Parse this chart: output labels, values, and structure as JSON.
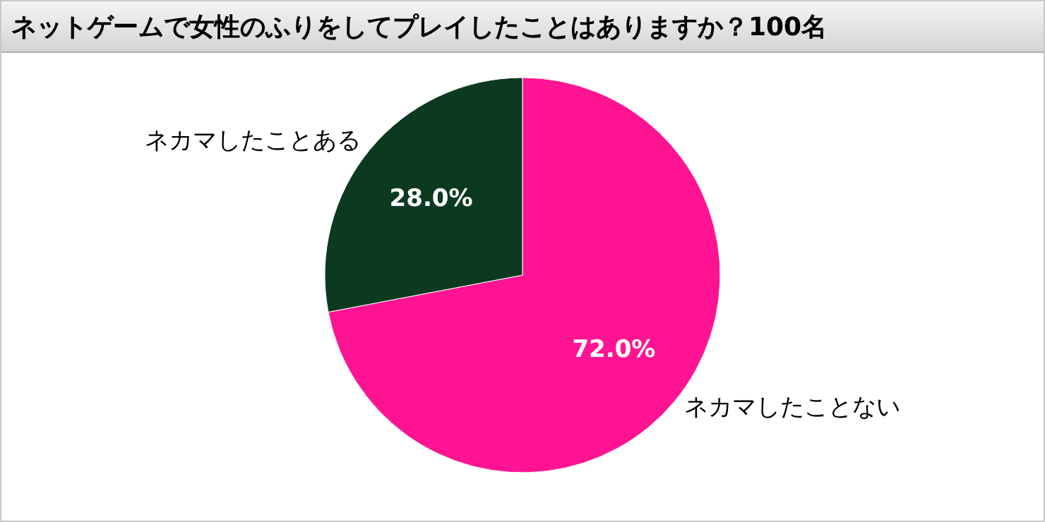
{
  "chart_data": {
    "type": "pie",
    "title": "ネットゲームで女性のふりをしてプレイしたことはありますか？100名",
    "categories": [
      "ネカマしたことない",
      "ネカマしたことある"
    ],
    "values": [
      72.0,
      28.0
    ],
    "value_labels": [
      "72.0%",
      "28.0%"
    ],
    "colors": [
      "#fe1493",
      "#0b3a20"
    ]
  }
}
